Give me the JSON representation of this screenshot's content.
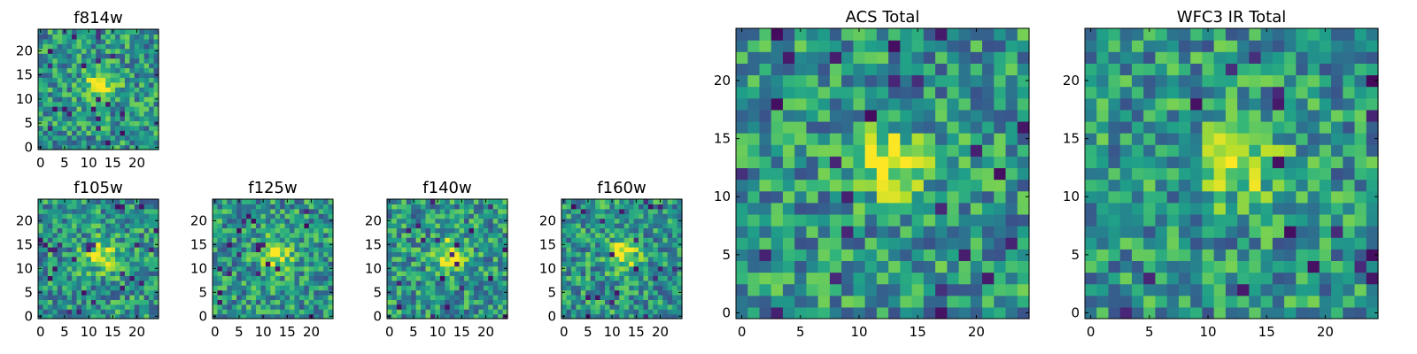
{
  "chart_data": [
    {
      "type": "heatmap",
      "title": "f814w",
      "xticks": [
        0,
        5,
        10,
        15,
        20
      ],
      "yticks": [
        0,
        5,
        10,
        15,
        20
      ],
      "xlim": [
        0,
        24
      ],
      "ylim": [
        0,
        24
      ],
      "colormap": "viridis",
      "seed": 11
    },
    {
      "type": "heatmap",
      "title": "f105w",
      "xticks": [
        0,
        5,
        10,
        15,
        20
      ],
      "yticks": [
        0,
        5,
        10,
        15,
        20
      ],
      "xlim": [
        0,
        24
      ],
      "ylim": [
        0,
        24
      ],
      "colormap": "viridis",
      "seed": 23
    },
    {
      "type": "heatmap",
      "title": "f125w",
      "xticks": [
        0,
        5,
        10,
        15,
        20
      ],
      "yticks": [
        0,
        5,
        10,
        15,
        20
      ],
      "xlim": [
        0,
        24
      ],
      "ylim": [
        0,
        24
      ],
      "colormap": "viridis",
      "seed": 37
    },
    {
      "type": "heatmap",
      "title": "f140w",
      "xticks": [
        0,
        5,
        10,
        15,
        20
      ],
      "yticks": [
        0,
        5,
        10,
        15,
        20
      ],
      "xlim": [
        0,
        24
      ],
      "ylim": [
        0,
        24
      ],
      "colormap": "viridis",
      "seed": 41
    },
    {
      "type": "heatmap",
      "title": "f160w",
      "xticks": [
        0,
        5,
        10,
        15,
        20
      ],
      "yticks": [
        0,
        5,
        10,
        15,
        20
      ],
      "xlim": [
        0,
        24
      ],
      "ylim": [
        0,
        24
      ],
      "colormap": "viridis",
      "seed": 53
    },
    {
      "type": "heatmap",
      "title": "ACS Total",
      "xticks": [
        0,
        5,
        10,
        15,
        20
      ],
      "yticks": [
        0,
        5,
        10,
        15,
        20
      ],
      "xlim": [
        0,
        24
      ],
      "ylim": [
        0,
        24
      ],
      "colormap": "viridis",
      "seed": 67
    },
    {
      "type": "heatmap",
      "title": "WFC3 IR Total",
      "xticks": [
        0,
        5,
        10,
        15,
        20
      ],
      "yticks": [
        0,
        5,
        10,
        15,
        20
      ],
      "xlim": [
        0,
        24
      ],
      "ylim": [
        0,
        24
      ],
      "colormap": "viridis",
      "seed": 79
    }
  ]
}
